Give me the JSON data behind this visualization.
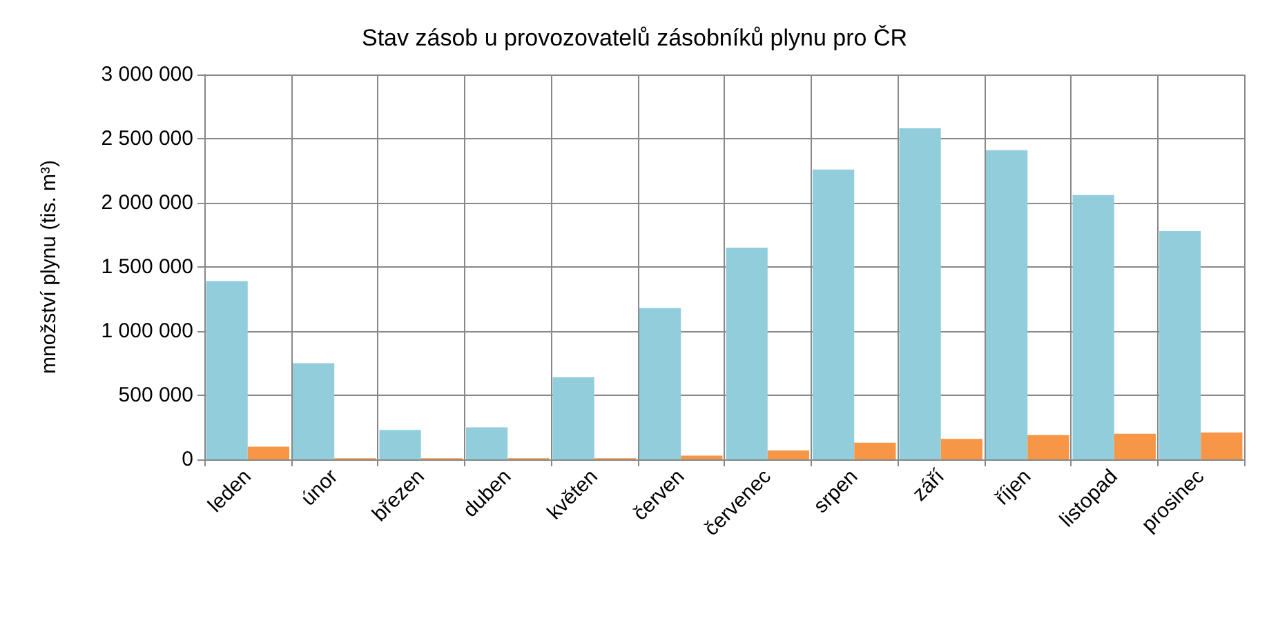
{
  "chart_data": {
    "type": "bar",
    "title": "Stav zásob u provozovatelů zásobníků plynu pro ČR",
    "ylabel": "množství plynu (tis. m³)",
    "categories": [
      "leden",
      "únor",
      "březen",
      "duben",
      "květen",
      "červen",
      "červenec",
      "srpen",
      "září",
      "říjen",
      "listopad",
      "prosinec"
    ],
    "series": [
      {
        "color": "#92cddc",
        "values": [
          1390000,
          750000,
          230000,
          250000,
          640000,
          1180000,
          1650000,
          2260000,
          2580000,
          2410000,
          2060000,
          1780000
        ]
      },
      {
        "color": "#f79646",
        "values": [
          100000,
          10000,
          10000,
          10000,
          10000,
          30000,
          70000,
          130000,
          160000,
          190000,
          200000,
          210000
        ]
      }
    ],
    "ylim": [
      0,
      3000000
    ],
    "yticks": [
      {
        "value": 0,
        "label": "0"
      },
      {
        "value": 500000,
        "label": "500 000"
      },
      {
        "value": 1000000,
        "label": "1 000 000"
      },
      {
        "value": 1500000,
        "label": "1 500 000"
      },
      {
        "value": 2000000,
        "label": "2 000 000"
      },
      {
        "value": 2500000,
        "label": "2 500 000"
      },
      {
        "value": 3000000,
        "label": "3 000 000"
      }
    ],
    "grid": true
  }
}
